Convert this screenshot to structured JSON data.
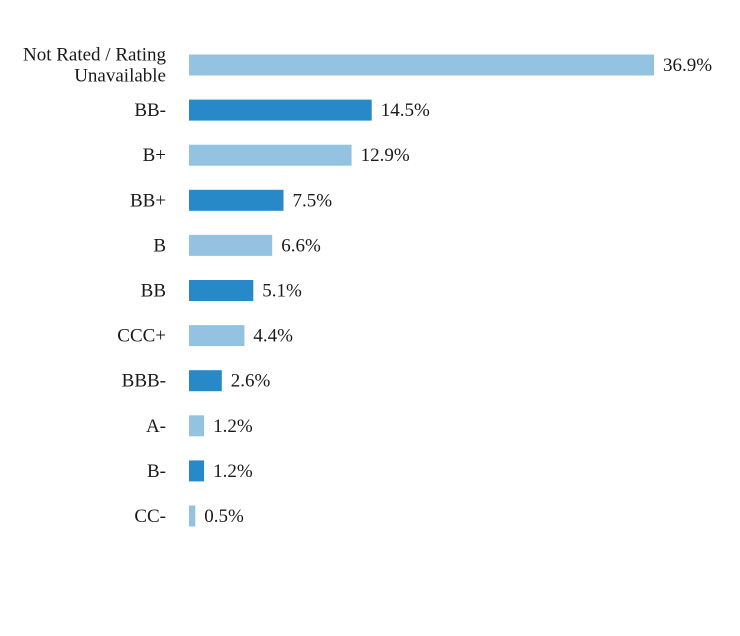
{
  "chart_data": {
    "type": "bar",
    "orientation": "horizontal",
    "title": "",
    "xlabel": "",
    "ylabel": "",
    "categories": [
      [
        "Not Rated / Rating",
        "Unavailable"
      ],
      "BB-",
      "B+",
      "BB+",
      "B",
      "BB",
      "CCC+",
      "BBB-",
      "A-",
      "B-",
      "CC-"
    ],
    "values": [
      36.9,
      14.5,
      12.9,
      7.5,
      6.6,
      5.1,
      4.4,
      2.6,
      1.2,
      1.2,
      0.5
    ],
    "value_labels": [
      "36.9%",
      "14.5%",
      "12.9%",
      "7.5%",
      "6.6%",
      "5.1%",
      "4.4%",
      "2.6%",
      "1.2%",
      "1.2%",
      "0.5%"
    ],
    "xlim": [
      0,
      36.9
    ],
    "grid": false,
    "legend": "none",
    "colors": {
      "light": "#94c3e1",
      "dark": "#2889c8"
    },
    "color_pattern": [
      "light",
      "dark"
    ]
  }
}
